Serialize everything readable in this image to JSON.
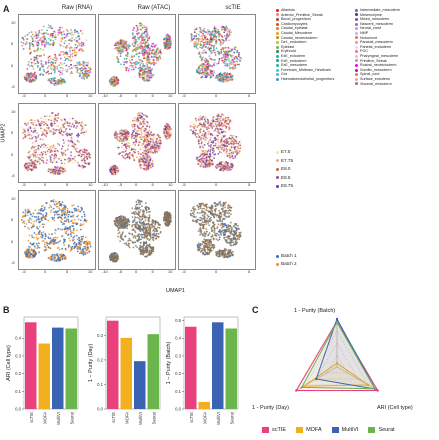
{
  "panelA": {
    "letter": "A",
    "columns": [
      "Raw (RNA)",
      "Raw (ATAC)",
      "scTIE"
    ],
    "ylabel": "UMAP2",
    "xlabel": "UMAP1",
    "xticks_rna": [
      "-5",
      "0",
      "5",
      "10"
    ],
    "xticks_atac": [
      "-10",
      "-5",
      "0",
      "5",
      "10"
    ],
    "xticks_sctie": [
      "-5",
      "0",
      "5"
    ],
    "yticks": [
      "10",
      "5",
      "0",
      "-5"
    ],
    "celltype_legend_col1": [
      "Allantois",
      "Anterior_Primitive_Streak",
      "Blood_progenitors",
      "Cardiomyocytes",
      "Caudal_epiblast",
      "Caudal_Mesoderm",
      "Caudal_neurectoderm",
      "Def._endoderm",
      "Epiblast",
      "Erythroid",
      "ExE_ectoderm",
      "ExE_endoderm",
      "ExE_mesoderm",
      "Forebrain_Midbrain_Hindbrain",
      "Gut",
      "Haematoendothelial_progenitors"
    ],
    "celltype_legend_col2": [
      "Intermediate_mesoderm",
      "Mesenchyme",
      "Mixed_mesoderm",
      "Nascent_mesoderm",
      "Neural_crest",
      "NMP",
      "Notochord",
      "Paraxial_mesoderm",
      "Parietal_endoderm",
      "PGC",
      "Pharyngeal_mesoderm",
      "Primitive_Streak",
      "Rostral_neurectoderm",
      "Somitic_mesoderm",
      "Spinal_cord",
      "Surface_ectoderm",
      "Visceral_endoderm"
    ],
    "celltype_colors1": [
      "#e41a1c",
      "#f08080",
      "#c0392b",
      "#d35400",
      "#e67e22",
      "#f39c12",
      "#b7950b",
      "#9acd32",
      "#7cb342",
      "#2e8b57",
      "#20b2aa",
      "#17a589",
      "#1abc9c",
      "#48c9b0",
      "#5dade2",
      "#3498db"
    ],
    "celltype_colors2": [
      "#2e86c1",
      "#5b2c6f",
      "#8e44ad",
      "#a569bd",
      "#c39bd3",
      "#d2b4de",
      "#ec7063",
      "#f1948a",
      "#e8daef",
      "#ff69b4",
      "#f5b7b1",
      "#bb8fce",
      "#ff00ff",
      "#c71585",
      "#db7093",
      "#ffa07a",
      "#808080"
    ],
    "day_legend": [
      "E7.5",
      "E7.75",
      "E8.0",
      "E8.5",
      "E8.75"
    ],
    "day_colors": [
      "#f3e99f",
      "#f4a582",
      "#d6604d",
      "#9e4a9c",
      "#6a3d9a"
    ],
    "batch_legend": [
      "Batch 1",
      "Batch 2"
    ],
    "batch_colors": [
      "#3b6fb6",
      "#f28e2b"
    ]
  },
  "panelB": {
    "letter": "B",
    "charts": [
      {
        "ylabel": "ARI (Cell type)"
      },
      {
        "ylabel": "1 − Purity (Day)"
      },
      {
        "ylabel": "1 − Purity (Batch)"
      }
    ]
  },
  "panelC": {
    "letter": "C",
    "axis_top": "1 - Purity (Batch)",
    "axis_left": "1 - Purity (Day)",
    "axis_right": "ARI (Cell type)",
    "legend": [
      "scTIE",
      "MOFA",
      "MultiVI",
      "Seurat"
    ]
  },
  "colors": {
    "scTIE": "#e8417d",
    "MOFA": "#f2b01e",
    "MultiVI": "#3a63b4",
    "Seurat": "#6ab64d"
  },
  "chart_data": [
    {
      "type": "bar",
      "categories": [
        "scTIE",
        "MOFA",
        "MultiVI",
        "Seurat"
      ],
      "values": [
        0.49,
        0.37,
        0.46,
        0.455
      ],
      "ylabel": "ARI (Cell type)",
      "ylim": [
        0.0,
        0.52
      ],
      "yticks": [
        0.0,
        0.1,
        0.2,
        0.3,
        0.4
      ]
    },
    {
      "type": "bar",
      "categories": [
        "scTIE",
        "MOFA",
        "MultiVI",
        "Seurat"
      ],
      "values": [
        0.36,
        0.29,
        0.195,
        0.305
      ],
      "ylabel": "1 − Purity (Day)",
      "ylim": [
        0.0,
        0.375
      ],
      "yticks": [
        0.0,
        0.1,
        0.2,
        0.3
      ]
    },
    {
      "type": "bar",
      "categories": [
        "scTIE",
        "MOFA",
        "MultiVI",
        "Seurat"
      ],
      "values": [
        0.465,
        0.04,
        0.49,
        0.455
      ],
      "ylabel": "1 − Purity (Batch)",
      "ylim": [
        0.0,
        0.52
      ],
      "yticks": [
        0.0,
        0.1,
        0.2,
        0.3,
        0.4,
        0.5
      ]
    },
    {
      "type": "radar",
      "axes": [
        "1 - Purity (Batch)",
        "ARI (Cell type)",
        "1 - Purity (Day)"
      ],
      "series": [
        {
          "name": "scTIE",
          "values": [
            0.95,
            0.98,
            0.98
          ]
        },
        {
          "name": "MOFA",
          "values": [
            0.08,
            0.75,
            0.8
          ]
        },
        {
          "name": "MultiVI",
          "values": [
            1.0,
            0.92,
            0.5
          ]
        },
        {
          "name": "Seurat",
          "values": [
            0.93,
            0.91,
            0.85
          ]
        }
      ]
    }
  ]
}
